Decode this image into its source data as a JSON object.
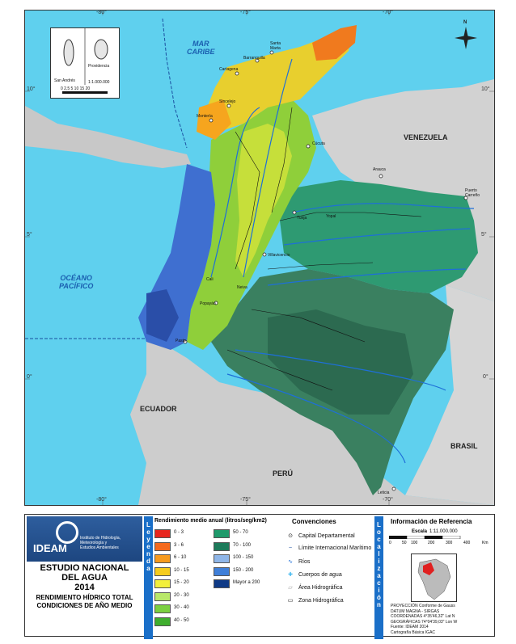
{
  "map": {
    "coords_top": [
      "-80°",
      "-75°",
      "-70°"
    ],
    "coords_bottom": [
      "-80°",
      "-75°",
      "-70°"
    ],
    "coords_left": [
      "10°",
      "5°",
      "0°"
    ],
    "coords_right": [
      "10°",
      "5°",
      "0°"
    ],
    "sea_caribe": "MAR\nCARIBE",
    "sea_pacifico": "OCÉANO\nPACÍFICO",
    "countries": {
      "venezuela": "VENEZUELA",
      "ecuador": "ECUADOR",
      "peru": "PERÚ",
      "brasil": "BRASIL"
    },
    "cities": {
      "santa_marta": "Santa\nMarta",
      "barranquilla": "Barranquilla",
      "cartagena": "Cartagena",
      "sincelejo": "Sincelejo",
      "monteria": "Montería",
      "cucuta": "Cúcuta",
      "arauca": "Arauca",
      "puerto_carreno": "Puerto\nCarreño",
      "yopal": "Yopal",
      "tunja": "Tunja",
      "villavicencio": "Villavicencio",
      "pasto": "Pasto",
      "popayan": "Popayán",
      "cali": "Cali",
      "neiva": "Neiva",
      "leticia": "Leticia"
    },
    "north_arrow": "N",
    "inset": {
      "san_andres": "San Andrés",
      "providencia": "Providencia",
      "scale_small": "1:1.000.000",
      "scale_marks": "0 2,5 5   10   15   20"
    }
  },
  "legend": {
    "study_title": "ESTUDIO NACIONAL\nDEL AGUA\n2014",
    "study_sub": "RENDIMIENTO HÍDRICO TOTAL\nCONDICIONES DE AÑO MEDIO",
    "org_name": "IDEAM",
    "org_desc": "Instituto de Hidrología,\nMeteorología y\nEstudios Ambientales",
    "band_left": "Leyenda",
    "band_right": "Localización",
    "rendimiento_title": "Rendimiento medio anual (litros/seg/km2)",
    "classes_col1": [
      "0 - 3",
      "3 - 6",
      "6 - 10",
      "10 - 15",
      "15 - 20",
      "20 - 30",
      "30 - 40",
      "40 - 50"
    ],
    "classes_col2": [
      "50 - 70",
      "70 - 100",
      "100 - 150",
      "150 - 200",
      "Mayor a 200"
    ],
    "colors_col1": [
      "#e8261e",
      "#f46a1e",
      "#f69a1e",
      "#f6cc1e",
      "#f2ef3c",
      "#b9e86a",
      "#7bd040",
      "#3fae2e"
    ],
    "colors_col2": [
      "#1f9a6b",
      "#1d7a5a",
      "#8fb6e8",
      "#3f7fd8",
      "#0f3a86"
    ],
    "convenciones_title": "Convenciones",
    "convenciones": [
      "Capital Departamental",
      "Límite Internacional Marítimo",
      "Ríos",
      "Cuerpos de agua",
      "Área Hidrográfica",
      "Zona Hidrográfica"
    ],
    "ref_title": "Información de Referencia",
    "scale_label": "Escala",
    "scale_value": "1:11.000.000",
    "scale_marks": [
      "0",
      "50",
      "100",
      "200",
      "300",
      "400",
      "Km"
    ],
    "ref_lines": [
      "PROYECCIÓN    Conforme de Gauss",
      "DATUM           MAGNA - SIRGAS",
      "COORDENADAS  4°35'46,32\" Lat N",
      "GEOGRÁFICAS  74°04'39,03\" Lon W",
      "Fuente: IDEAM 2014",
      "Cartografía Básica IGAC"
    ]
  }
}
